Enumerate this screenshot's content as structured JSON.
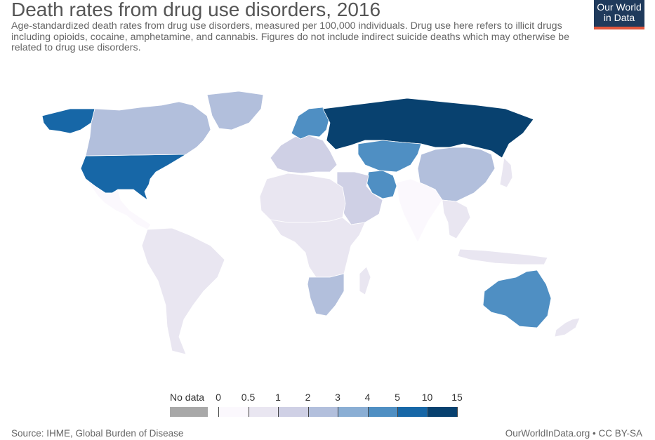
{
  "header": {
    "title": "Death rates from drug use disorders, 2016",
    "subtitle": "Age-standardized death rates from drug use disorders, measured per 100,000 individuals. Drug use here refers to illicit drugs including opioids, cocaine, amphetamine, and cannabis. Figures do not include indirect suicide deaths which may otherwise be related to drug use disorders."
  },
  "logo": {
    "line1": "Our World",
    "line2": "in Data",
    "bg_color": "#1f3a5c",
    "accent_color": "#e1563c"
  },
  "legend": {
    "nodata_label": "No data",
    "nodata_color": "#a8a8a8",
    "ticks": [
      "0",
      "0.5",
      "1",
      "2",
      "3",
      "4",
      "5",
      "10",
      "15"
    ],
    "bin_colors": [
      "#fbf8fd",
      "#e9e6f1",
      "#cfd0e5",
      "#b2bfdc",
      "#8aaed4",
      "#4f8fc3",
      "#1767a7",
      "#08416f"
    ]
  },
  "regions": [
    {
      "name": "United States",
      "bin": 6
    },
    {
      "name": "Canada",
      "bin": 3
    },
    {
      "name": "Alaska",
      "bin": 6
    },
    {
      "name": "Greenland",
      "bin": 3
    },
    {
      "name": "Mexico & Central America",
      "bin": 0
    },
    {
      "name": "South America",
      "bin": 1
    },
    {
      "name": "Western Europe",
      "bin": 2
    },
    {
      "name": "Scandinavia",
      "bin": 5
    },
    {
      "name": "Russia",
      "bin": 7
    },
    {
      "name": "Kazakhstan & Central Asia",
      "bin": 5
    },
    {
      "name": "Iran",
      "bin": 5
    },
    {
      "name": "Middle East",
      "bin": 2
    },
    {
      "name": "North Africa",
      "bin": 1
    },
    {
      "name": "Sub-Saharan Africa",
      "bin": 1
    },
    {
      "name": "Southern Africa",
      "bin": 3
    },
    {
      "name": "China",
      "bin": 3
    },
    {
      "name": "India",
      "bin": 0
    },
    {
      "name": "Southeast Asia",
      "bin": 1
    },
    {
      "name": "Australia",
      "bin": 5
    },
    {
      "name": "New Zealand",
      "bin": 1
    }
  ],
  "footer": {
    "source": "Source: IHME, Global Burden of Disease",
    "license": "OurWorldInData.org • CC BY-SA"
  }
}
